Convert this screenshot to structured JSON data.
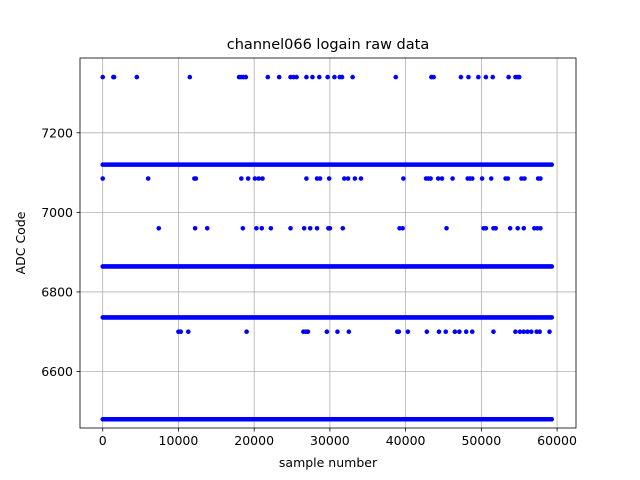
{
  "chart_data": {
    "type": "scatter",
    "title": "channel066 logain raw data",
    "xlabel": "sample number",
    "ylabel": "ADC Code",
    "xlim": [
      -3000,
      62500
    ],
    "ylim": [
      6458,
      7388
    ],
    "xticks": [
      0,
      10000,
      20000,
      30000,
      40000,
      50000,
      60000
    ],
    "yticks": [
      6600,
      6800,
      7000,
      7200
    ],
    "grid": true,
    "marker_color": "#0000ff",
    "x_range": [
      0,
      59300
    ],
    "levels": [
      {
        "y": 6480,
        "kind": "dense"
      },
      {
        "y": 6736,
        "kind": "dense"
      },
      {
        "y": 6864,
        "kind": "dense"
      },
      {
        "y": 7120,
        "kind": "dense"
      }
    ],
    "sparse_points": [
      {
        "y": 7340,
        "x": [
          0,
          1400,
          1500,
          4500,
          11500,
          18000,
          18300,
          18600,
          18900,
          21800,
          23300,
          24800,
          25200,
          25600,
          26900,
          27700,
          28600,
          29700,
          30600,
          31300,
          31600,
          33000,
          38700,
          43400,
          43700,
          47300,
          48300,
          49600,
          50600,
          51500,
          53600,
          54500,
          54800,
          55000
        ]
      },
      {
        "y": 7085,
        "x": [
          0,
          6000,
          12100,
          12300,
          18300,
          19200,
          20100,
          20600,
          21100,
          26900,
          28300,
          28700,
          29900,
          31900,
          32400,
          33300,
          34100,
          39700,
          42700,
          43000,
          43300,
          44300,
          44800,
          46200,
          48200,
          48500,
          48800,
          50100,
          51300,
          53200,
          53500,
          55300,
          55700,
          57500,
          57800
        ]
      },
      {
        "y": 6960,
        "x": [
          7400,
          12200,
          13800,
          18500,
          20300,
          21000,
          22200,
          24800,
          26600,
          27400,
          28300,
          29800,
          30000,
          31700,
          39200,
          39600,
          45400,
          50300,
          50600,
          51600,
          51900,
          53800,
          54800,
          55600,
          57000,
          57400,
          57800
        ]
      },
      {
        "y": 6700,
        "x": [
          10000,
          10300,
          11300,
          19000,
          26500,
          26800,
          27100,
          29600,
          31000,
          32500,
          38900,
          39100,
          40300,
          42800,
          44400,
          45300,
          46500,
          47100,
          48000,
          48800,
          51600,
          54500,
          55100,
          55600,
          56100,
          56600,
          57300,
          57700,
          59000
        ]
      }
    ]
  }
}
